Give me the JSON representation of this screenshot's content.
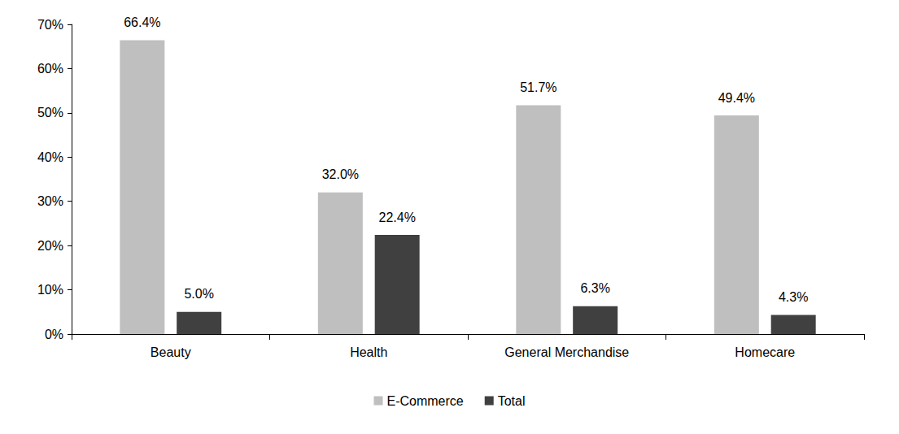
{
  "chart_data": {
    "type": "bar",
    "categories": [
      "Beauty",
      "Health",
      "General Merchandise",
      "Homecare"
    ],
    "series": [
      {
        "name": "E-Commerce",
        "color": "#bfbfbf",
        "values": [
          66.4,
          32.0,
          51.7,
          49.4
        ],
        "value_labels": [
          "66.4%",
          "32.0%",
          "51.7%",
          "49.4%"
        ]
      },
      {
        "name": "Total",
        "color": "#404040",
        "values": [
          5.0,
          22.4,
          6.3,
          4.3
        ],
        "value_labels": [
          "5.0%",
          "22.4%",
          "6.3%",
          "4.3%"
        ]
      }
    ],
    "ylim": [
      0,
      70
    ],
    "yticks": [
      {
        "value": 0,
        "label": "0%"
      },
      {
        "value": 10,
        "label": "10%"
      },
      {
        "value": 20,
        "label": "20%"
      },
      {
        "value": 30,
        "label": "30%"
      },
      {
        "value": 40,
        "label": "40%"
      },
      {
        "value": 50,
        "label": "50%"
      },
      {
        "value": 60,
        "label": "60%"
      },
      {
        "value": 70,
        "label": "70%"
      }
    ],
    "grid": false,
    "legend": "bottom",
    "data_labels": true
  }
}
